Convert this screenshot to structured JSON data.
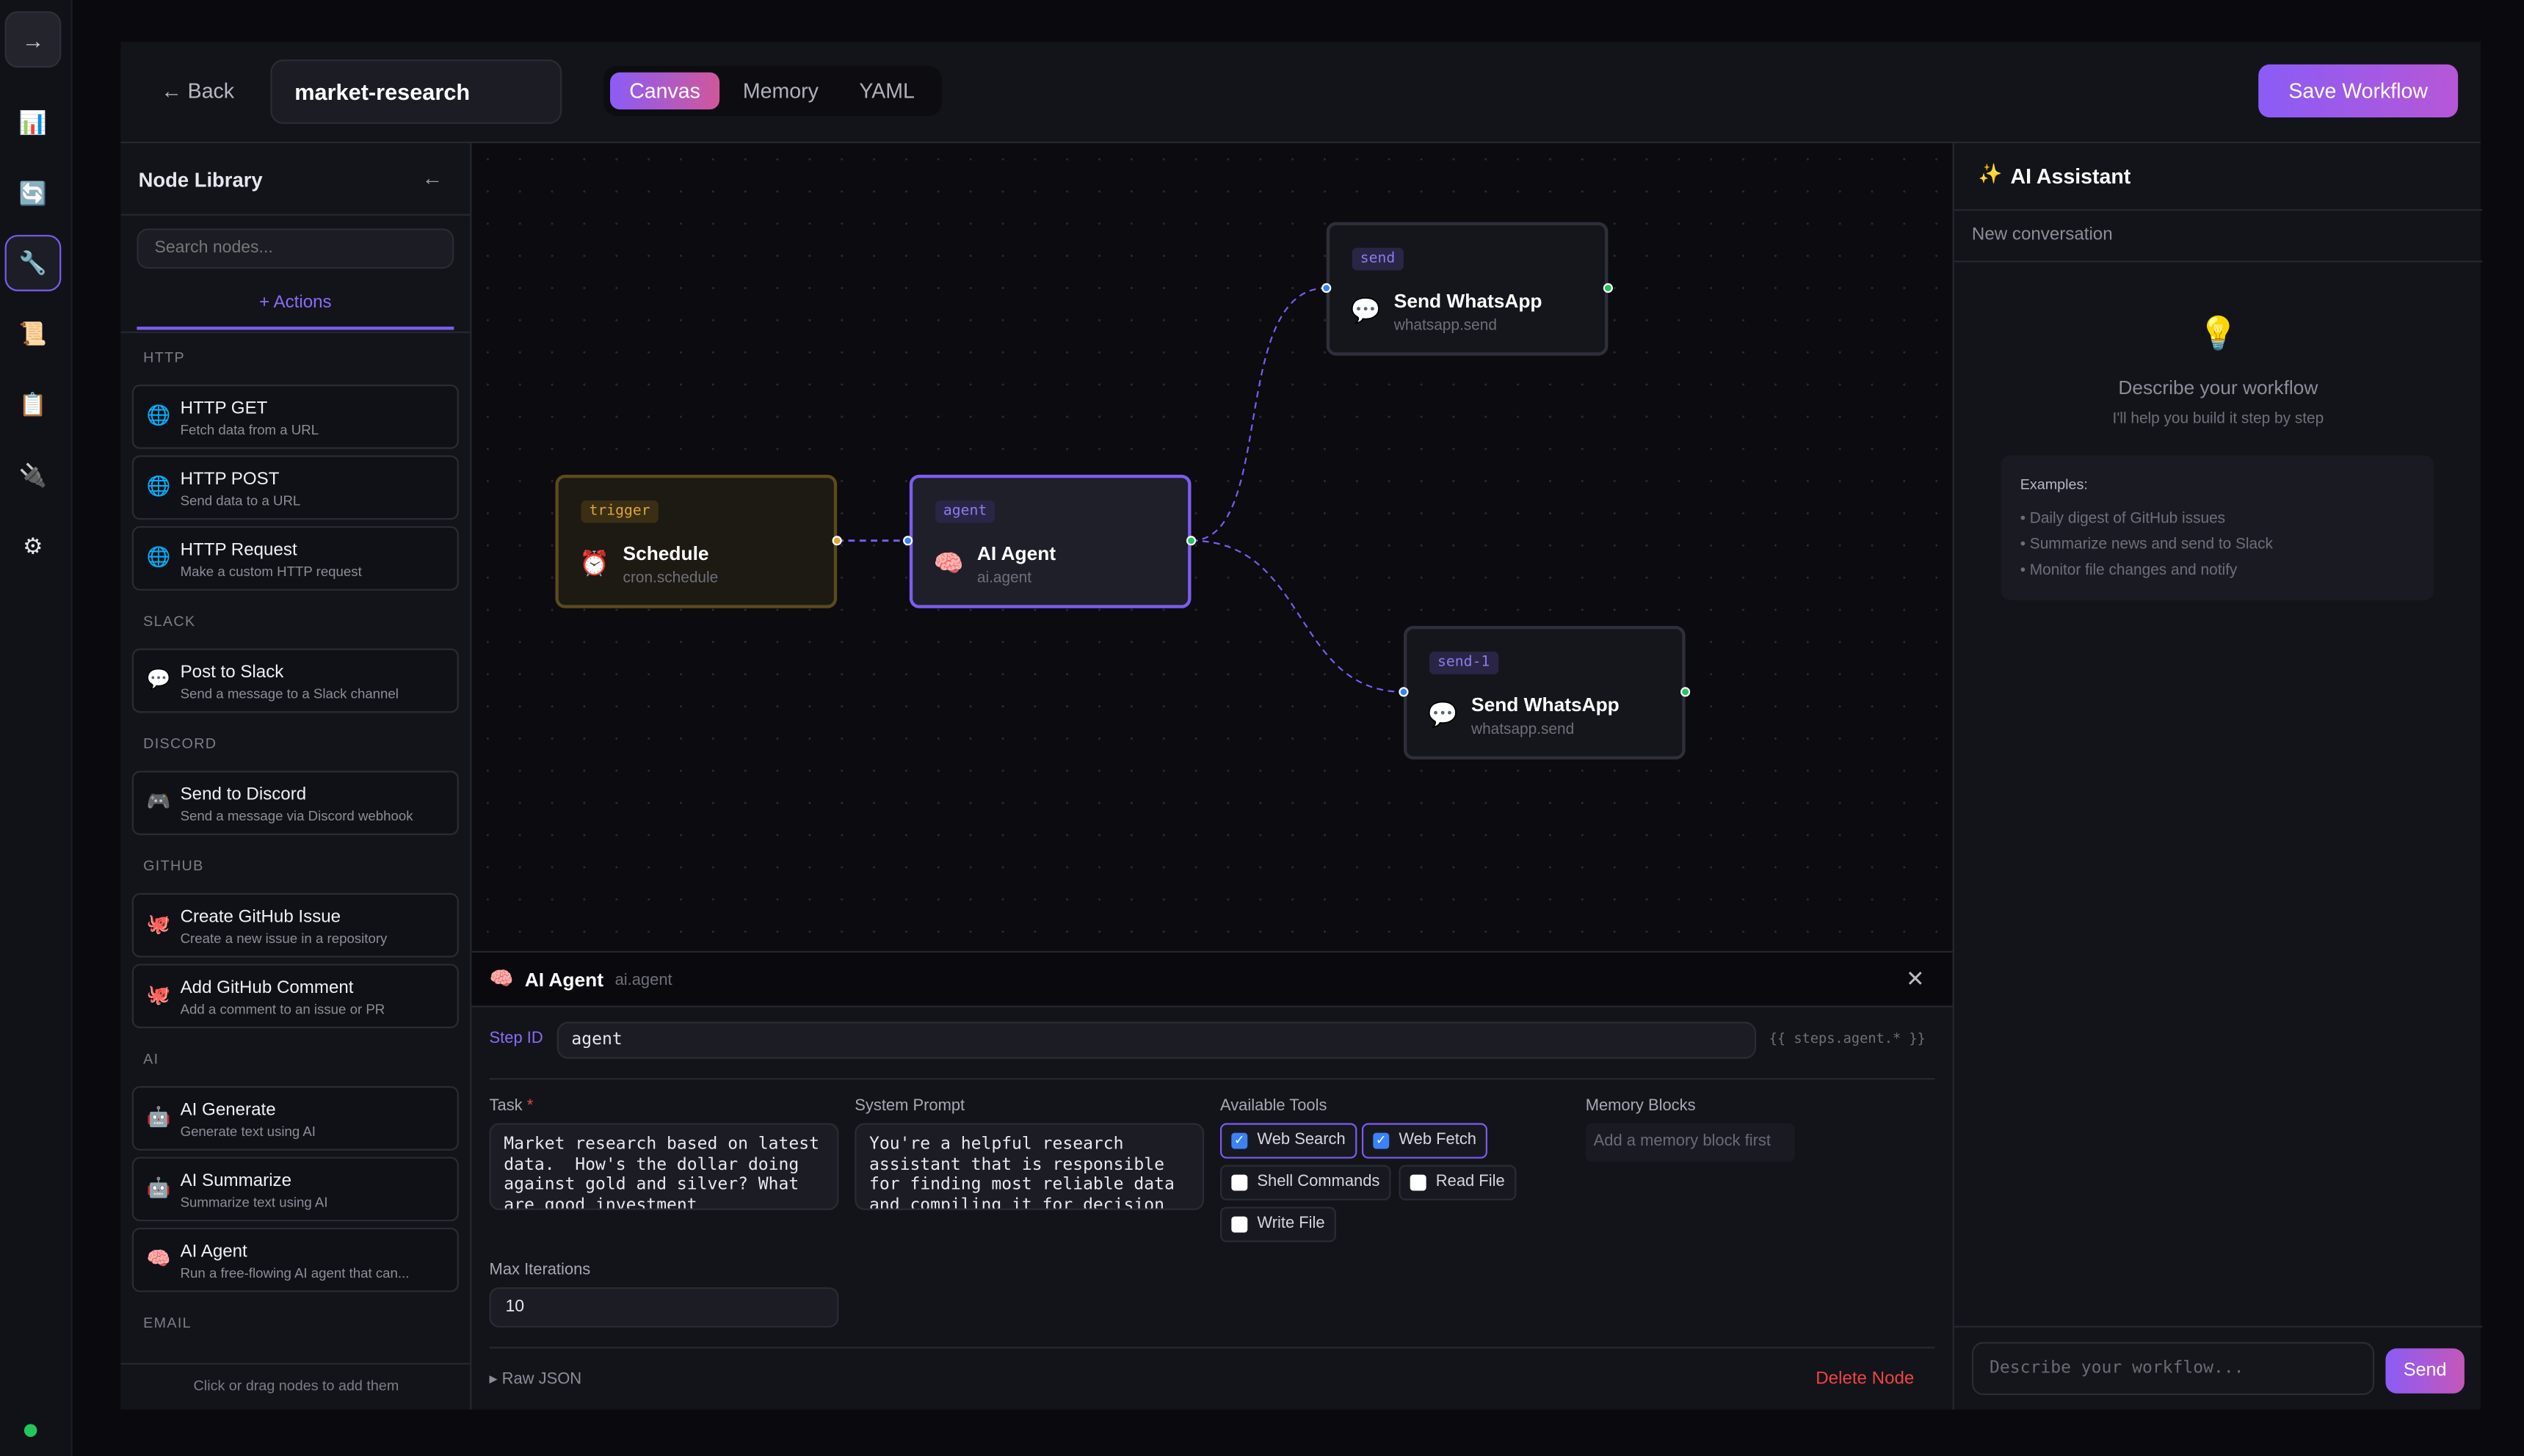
{
  "rail": {
    "items": [
      {
        "icon": "arrow-right-icon",
        "glyph": "→"
      },
      {
        "icon": "chart-icon",
        "glyph": "📊"
      },
      {
        "icon": "refresh-icon",
        "glyph": "🔄"
      },
      {
        "icon": "wrench-icon",
        "glyph": "🔧",
        "active": true
      },
      {
        "icon": "scroll-icon",
        "glyph": "📜"
      },
      {
        "icon": "clipboard-icon",
        "glyph": "📋"
      },
      {
        "icon": "plug-icon",
        "glyph": "🔌"
      },
      {
        "icon": "gear-icon",
        "glyph": "⚙"
      }
    ],
    "status_color": "#22c55e"
  },
  "header": {
    "back": "← Back",
    "workflow_name": "market-research",
    "tabs": [
      "Canvas",
      "Memory",
      "YAML"
    ],
    "active_tab": "Canvas",
    "save": "Save Workflow"
  },
  "library": {
    "title": "Node Library",
    "collapse": "←",
    "search_placeholder": "Search nodes...",
    "tab": "+ Actions",
    "footer": "Click or drag nodes to add them",
    "sections": [
      {
        "name": "HTTP",
        "items": [
          {
            "icon": "🌐",
            "title": "HTTP GET",
            "desc": "Fetch data from a URL"
          },
          {
            "icon": "🌐",
            "title": "HTTP POST",
            "desc": "Send data to a URL"
          },
          {
            "icon": "🌐",
            "title": "HTTP Request",
            "desc": "Make a custom HTTP request"
          }
        ]
      },
      {
        "name": "SLACK",
        "items": [
          {
            "icon": "💬",
            "title": "Post to Slack",
            "desc": "Send a message to a Slack channel"
          }
        ]
      },
      {
        "name": "DISCORD",
        "items": [
          {
            "icon": "🎮",
            "title": "Send to Discord",
            "desc": "Send a message via Discord webhook"
          }
        ]
      },
      {
        "name": "GITHUB",
        "items": [
          {
            "icon": "🐙",
            "title": "Create GitHub Issue",
            "desc": "Create a new issue in a repository"
          },
          {
            "icon": "🐙",
            "title": "Add GitHub Comment",
            "desc": "Add a comment to an issue or PR"
          }
        ]
      },
      {
        "name": "AI",
        "items": [
          {
            "icon": "🤖",
            "title": "AI Generate",
            "desc": "Generate text using AI"
          },
          {
            "icon": "🤖",
            "title": "AI Summarize",
            "desc": "Summarize text using AI"
          },
          {
            "icon": "🧠",
            "title": "AI Agent",
            "desc": "Run a free-flowing AI agent that can..."
          }
        ]
      },
      {
        "name": "EMAIL",
        "items": []
      }
    ]
  },
  "canvas": {
    "nodes": [
      {
        "id": "trigger",
        "icon": "⏰",
        "title": "Schedule",
        "type": "cron.schedule"
      },
      {
        "id": "agent",
        "icon": "🧠",
        "title": "AI Agent",
        "type": "ai.agent",
        "selected": true
      },
      {
        "id": "send",
        "icon": "💬",
        "title": "Send WhatsApp",
        "type": "whatsapp.send"
      },
      {
        "id": "send-1",
        "icon": "💬",
        "title": "Send WhatsApp",
        "type": "whatsapp.send"
      }
    ],
    "edges": [
      [
        "trigger",
        "agent"
      ],
      [
        "agent",
        "send"
      ],
      [
        "agent",
        "send-1"
      ]
    ]
  },
  "inspector": {
    "icon": "🧠",
    "title": "AI Agent",
    "type": "ai.agent",
    "step_id_label": "Step ID",
    "step_id": "agent",
    "ref_hint": "{{ steps.agent.* }}",
    "task_label": "Task",
    "required": "*",
    "task": "Market research based on latest data.  How's the dollar doing against gold and silver? What are good investment",
    "system_prompt_label": "System Prompt",
    "system_prompt": "You're a helpful research assistant that is responsible for finding most reliable data and compiling it for decision",
    "tools_label": "Available Tools",
    "tools": [
      {
        "name": "Web Search",
        "checked": true
      },
      {
        "name": "Web Fetch",
        "checked": true
      },
      {
        "name": "Shell Commands",
        "checked": false
      },
      {
        "name": "Read File",
        "checked": false
      },
      {
        "name": "Write File",
        "checked": false
      }
    ],
    "memory_label": "Memory Blocks",
    "memory_placeholder": "Add a memory block first",
    "max_iter_label": "Max Iterations",
    "max_iter": "10",
    "raw_json": "▸ Raw JSON",
    "delete": "Delete Node"
  },
  "assistant": {
    "title": "AI Assistant",
    "icon": "✨",
    "conversation": "New conversation",
    "empty_icon": "💡",
    "empty_title": "Describe your workflow",
    "empty_sub": "I'll help you build it step by step",
    "examples_label": "Examples:",
    "examples": [
      "Daily digest of GitHub issues",
      "Summarize news and send to Slack",
      "Monitor file changes and notify"
    ],
    "input_placeholder": "Describe your workflow...",
    "send": "Send"
  }
}
